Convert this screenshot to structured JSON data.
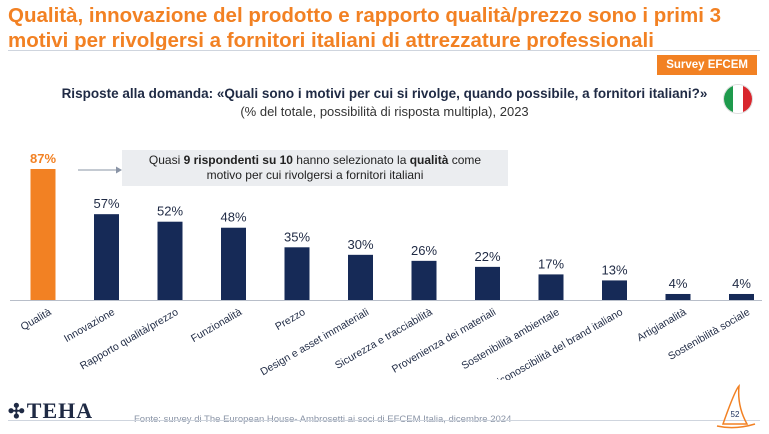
{
  "header": {
    "title": "Qualità, innovazione del prodotto e rapporto qualità/prezzo sono i primi 3 motivi per rivolgersi a fornitori italiani di attrezzature professionali",
    "badge": "Survey EFCEM"
  },
  "question": {
    "main": "Risposte alla domanda: «Quali sono i motivi per cui si rivolge, quando possibile, a fornitori italiani?»",
    "sub": "(% del totale, possibilità di risposta multipla), 2023"
  },
  "callout": {
    "line1_a": "Quasi ",
    "line1_b": "9 rispondenti su 10",
    "line1_c": " hanno selezionato la ",
    "line1_d": "qualità",
    "line1_e": " come",
    "line2": "motivo per cui rivolgersi a fornitori italiani"
  },
  "chart_data": {
    "type": "bar",
    "title": "",
    "xlabel": "",
    "ylabel": "",
    "ylim": [
      0,
      100
    ],
    "unit": "%",
    "categories": [
      "Qualità",
      "Innovazione",
      "Rapporto qualità/prezzo",
      "Funzionalità",
      "Prezzo",
      "Design e asset immateriali",
      "Sicurezza e tracciabilità",
      "Provenienza dei materiali",
      "Sostenibilità ambientale",
      "Riconoscibilità del brand italiano",
      "Artigianalità",
      "Sostenibilità sociale"
    ],
    "values": [
      87,
      57,
      52,
      48,
      35,
      30,
      26,
      22,
      17,
      13,
      4,
      4
    ],
    "highlight_index": 0,
    "colors": {
      "highlight": "#f28123",
      "default": "#162a57",
      "axis": "#b8bec9"
    }
  },
  "footer": {
    "logo": "TEHA",
    "source": "Fonte: survey di The European House- Ambrosetti ai soci di EFCEM Italia, dicembre 2024",
    "page": "52"
  },
  "colors": {
    "accent": "#f28123",
    "navy": "#162a57"
  }
}
